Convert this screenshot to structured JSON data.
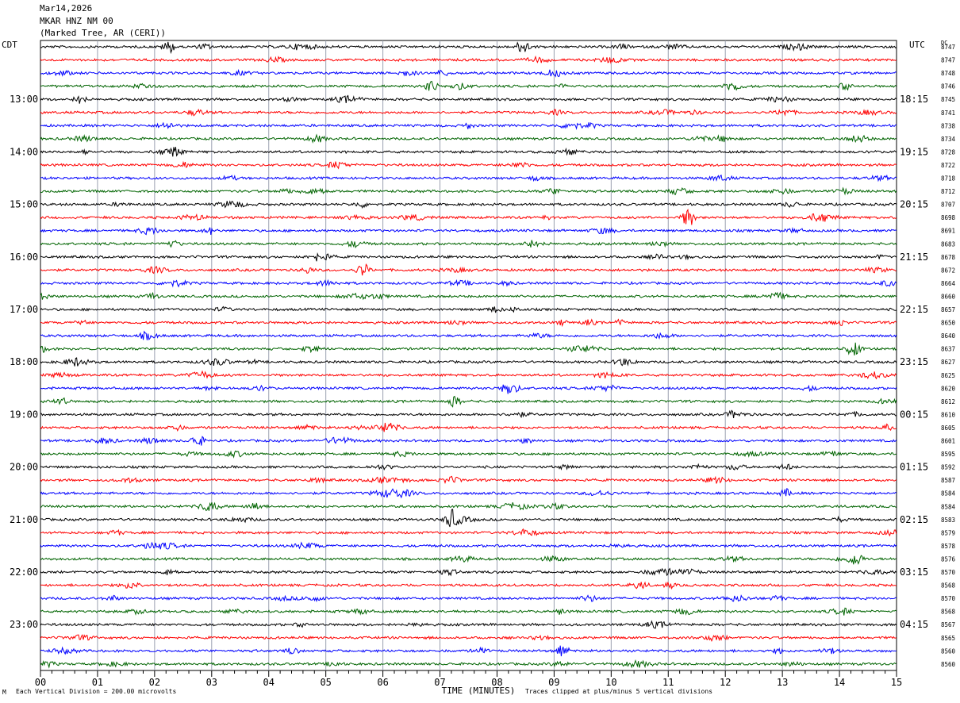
{
  "header": {
    "date": "Mar14,2026",
    "station": "MKAR HNZ NM 00",
    "location": "(Marked Tree, AR (CERI))"
  },
  "left_timezone": "CDT",
  "right_timezone": "UTC",
  "dc_label": "DC",
  "footer": {
    "scale_note": "Each Vertical Division =  200.00 microvolts",
    "clip_note": "Traces clipped at plus/minus 5 vertical divisions",
    "corner_mark": "M"
  },
  "chart_data": {
    "type": "line",
    "subtype": "helicorder",
    "xlabel": "TIME (MINUTES)",
    "x_ticks": [
      "00",
      "01",
      "02",
      "03",
      "04",
      "05",
      "06",
      "07",
      "08",
      "09",
      "10",
      "11",
      "12",
      "13",
      "14",
      "15"
    ],
    "xlim": [
      0,
      15
    ],
    "traces_per_hour": 4,
    "colors": [
      "#000000",
      "#ff0000",
      "#0000ff",
      "#006400"
    ],
    "left_hour_labels": [
      "13:00",
      "14:00",
      "15:00",
      "16:00",
      "17:00",
      "18:00",
      "19:00",
      "20:00",
      "21:00",
      "22:00",
      "23:00"
    ],
    "right_hour_labels": [
      "18:15",
      "19:15",
      "20:15",
      "21:15",
      "22:15",
      "23:15",
      "00:15",
      "01:15",
      "02:15",
      "03:15",
      "04:15"
    ],
    "dc_offsets": [
      8747,
      8747,
      8748,
      8746,
      8745,
      8741,
      8738,
      8734,
      8728,
      8722,
      8718,
      8712,
      8707,
      8698,
      8691,
      8683,
      8678,
      8672,
      8664,
      8660,
      8657,
      8650,
      8640,
      8637,
      8627,
      8625,
      8620,
      8612,
      8610,
      8605,
      8601,
      8595,
      8592,
      8587,
      8584,
      8584,
      8583,
      8579,
      8578,
      8576,
      8570,
      8568,
      8570,
      8568,
      8567,
      8565,
      8560,
      8560
    ],
    "events": [
      {
        "trace": 0,
        "minute": 8.45,
        "amplitude": 9
      },
      {
        "trace": 0,
        "minute": 2.25,
        "amplitude": 7
      },
      {
        "trace": 3,
        "minute": 6.85,
        "amplitude": 7
      },
      {
        "trace": 4,
        "minute": 0.7,
        "amplitude": 5
      },
      {
        "trace": 13,
        "minute": 11.35,
        "amplitude": 12
      },
      {
        "trace": 17,
        "minute": 5.65,
        "amplitude": 8
      },
      {
        "trace": 23,
        "minute": 14.25,
        "amplitude": 10
      },
      {
        "trace": 26,
        "minute": 8.15,
        "amplitude": 7
      },
      {
        "trace": 27,
        "minute": 7.25,
        "amplitude": 6
      },
      {
        "trace": 30,
        "minute": 2.75,
        "amplitude": 8
      },
      {
        "trace": 35,
        "minute": 3.75,
        "amplitude": 6
      },
      {
        "trace": 36,
        "minute": 7.2,
        "amplitude": 10
      },
      {
        "trace": 39,
        "minute": 14.3,
        "amplitude": 7
      },
      {
        "trace": 46,
        "minute": 9.15,
        "amplitude": 7
      }
    ]
  }
}
